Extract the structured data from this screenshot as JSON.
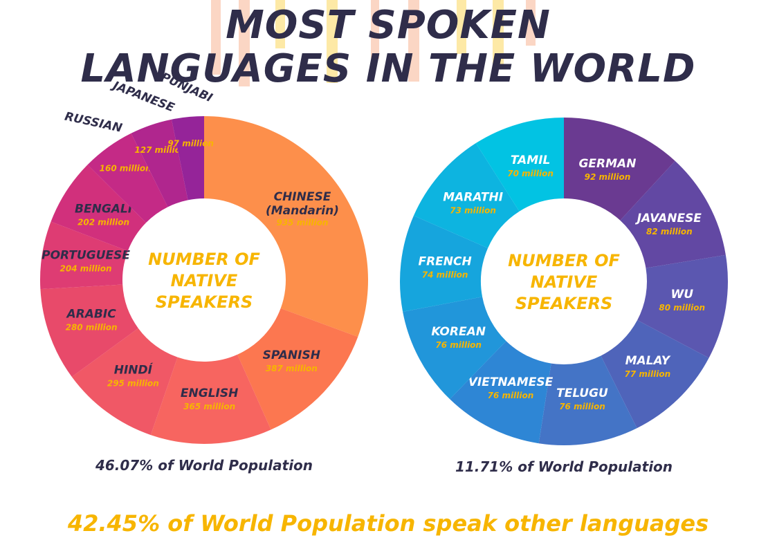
{
  "title": {
    "line1": "MOST SPOKEN",
    "line2": "LANGUAGES IN THE WORLD"
  },
  "chart_data": [
    {
      "type": "pie",
      "center_label": [
        "NUMBER OF",
        "NATIVE",
        "SPEAKERS"
      ],
      "caption": "46.07% of World Population",
      "unit": "million",
      "slices": [
        {
          "label": "CHINESE (Mandarin)",
          "value_text": "935 million",
          "value": 935,
          "color": "#fd8f4b"
        },
        {
          "label": "SPANISH",
          "value_text": "387 million",
          "value": 387,
          "color": "#fc7750"
        },
        {
          "label": "ENGLISH",
          "value_text": "365 million",
          "value": 365,
          "color": "#f76560"
        },
        {
          "label": "HINDÍ",
          "value_text": "295 million",
          "value": 295,
          "color": "#f05866"
        },
        {
          "label": "ARABIC",
          "value_text": "280 million",
          "value": 280,
          "color": "#e84a6a"
        },
        {
          "label": "PORTUGUESE",
          "value_text": "204 million",
          "value": 204,
          "color": "#de3c73"
        },
        {
          "label": "BENGALI",
          "value_text": "202 million",
          "value": 202,
          "color": "#d1307c"
        },
        {
          "label": "RUSSIAN",
          "value_text": "160 million",
          "value": 160,
          "color": "#c42a86"
        },
        {
          "label": "JAPANESE",
          "value_text": "127 million",
          "value": 127,
          "color": "#b0268e"
        },
        {
          "label": "PUNJABI",
          "value_text": "97 million",
          "value": 97,
          "color": "#952499"
        }
      ]
    },
    {
      "type": "pie",
      "center_label": [
        "NUMBER OF",
        "NATIVE",
        "SPEAKERS"
      ],
      "caption": "11.71% of World Population",
      "unit": "million",
      "slices": [
        {
          "label": "GERMAN",
          "value_text": "92 million",
          "value": 92,
          "color": "#6a3a91"
        },
        {
          "label": "JAVANESE",
          "value_text": "82 million",
          "value": 82,
          "color": "#6248a3"
        },
        {
          "label": "WU",
          "value_text": "80 million",
          "value": 80,
          "color": "#5b57b0"
        },
        {
          "label": "MALAY",
          "value_text": "77 million",
          "value": 77,
          "color": "#4f64ba"
        },
        {
          "label": "TELUGU",
          "value_text": "76 million",
          "value": 76,
          "color": "#4474c6"
        },
        {
          "label": "VIETNAMESE",
          "value_text": "76 million",
          "value": 76,
          "color": "#2e86d5"
        },
        {
          "label": "KOREAN",
          "value_text": "76 million",
          "value": 76,
          "color": "#2196da"
        },
        {
          "label": "FRENCH",
          "value_text": "74 million",
          "value": 74,
          "color": "#16a5dd"
        },
        {
          "label": "MARATHI",
          "value_text": "73 million",
          "value": 73,
          "color": "#0db4e0"
        },
        {
          "label": "TAMIL",
          "value_text": "70 million",
          "value": 70,
          "color": "#02c3e3"
        }
      ]
    }
  ],
  "footer": "42.45% of World Population speak other languages"
}
